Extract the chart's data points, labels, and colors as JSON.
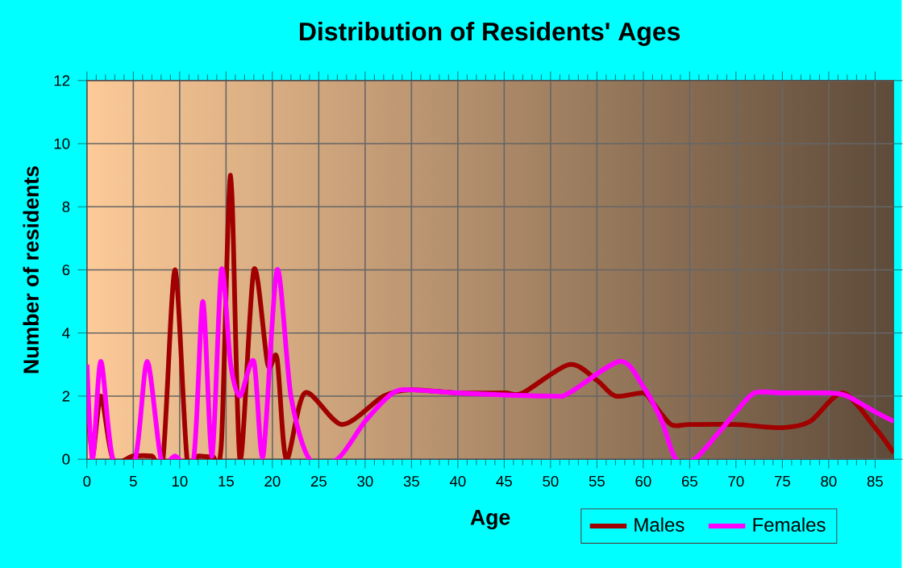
{
  "chart_data": {
    "type": "line",
    "title": "Distribution of Residents' Ages",
    "xlabel": "Age",
    "ylabel": "Number of residents",
    "xlim": [
      0,
      87
    ],
    "ylim": [
      0,
      12
    ],
    "xticks": [
      0,
      5,
      10,
      15,
      20,
      25,
      30,
      35,
      40,
      45,
      50,
      55,
      60,
      65,
      70,
      75,
      80,
      85
    ],
    "yticks": [
      0,
      2,
      4,
      6,
      8,
      10,
      12
    ],
    "grid": true,
    "legend": "bottom right",
    "series": [
      {
        "name": "Males",
        "color": "#a00000",
        "x": [
          0,
          0.6,
          1.5,
          2.8,
          5,
          7,
          8.2,
          9.5,
          10.8,
          12,
          13.5,
          14.5,
          15.5,
          16.5,
          18,
          19.5,
          20.5,
          21.5,
          23.5,
          27.5,
          32,
          35,
          40,
          45,
          47,
          52,
          55,
          57,
          60,
          61,
          63,
          65,
          70,
          75,
          78,
          81.5,
          85,
          87
        ],
        "values": [
          2,
          0.1,
          2,
          0,
          0.1,
          0.1,
          0,
          6,
          0,
          0.1,
          0.1,
          0.5,
          9,
          0,
          6,
          3,
          3.2,
          0,
          2.1,
          1.1,
          2,
          2.2,
          2.1,
          2.1,
          2.1,
          3,
          2.5,
          2,
          2.1,
          1.8,
          1.1,
          1.1,
          1.1,
          1,
          1.2,
          2.1,
          1,
          0.2
        ]
      },
      {
        "name": "Females",
        "color": "#ff00ff",
        "x": [
          0,
          0.6,
          1.5,
          2.8,
          5.2,
          6.5,
          8,
          9.5,
          11.5,
          12.5,
          13.5,
          14.5,
          15.5,
          16.5,
          18,
          19,
          20.5,
          22,
          24,
          27,
          30,
          33,
          35,
          40,
          50,
          52,
          57.5,
          60,
          62,
          63.5,
          65.5,
          68,
          70,
          72,
          75,
          80,
          82,
          85,
          87
        ],
        "values": [
          3,
          0,
          3.1,
          0,
          0,
          3.1,
          0,
          0.1,
          0,
          5,
          0.1,
          6,
          3,
          2,
          3.1,
          0.1,
          6,
          2,
          0,
          0,
          1.2,
          2.1,
          2.2,
          2.1,
          2,
          2.1,
          3.1,
          2.3,
          1.2,
          0,
          0,
          0.8,
          1.5,
          2.1,
          2.1,
          2.1,
          2,
          1.5,
          1.2
        ]
      }
    ]
  }
}
